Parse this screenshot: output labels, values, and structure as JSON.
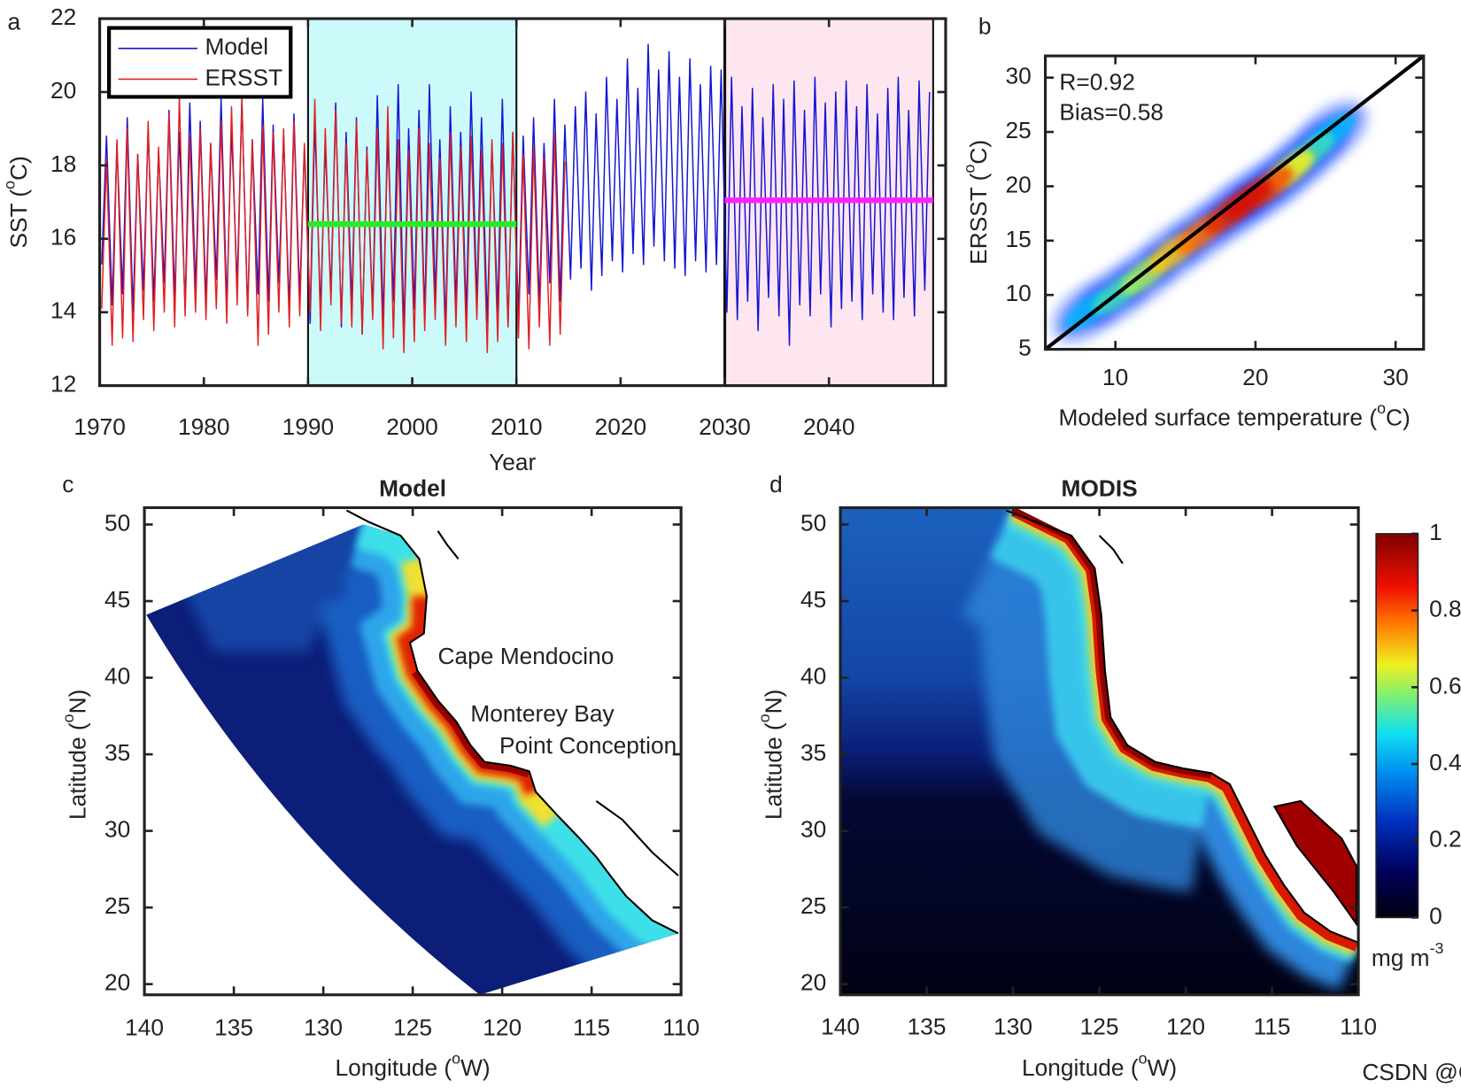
{
  "chart_data": [
    {
      "type": "line",
      "panel_label": "a",
      "xlabel": "Year",
      "ylabel": [
        "SST (",
        "o",
        "C)"
      ],
      "xlim": [
        1970,
        2051.2
      ],
      "ylim": [
        12,
        22
      ],
      "xticks": [
        1970,
        1980,
        1990,
        2000,
        2010,
        2020,
        2030,
        2040
      ],
      "yticks": [
        12,
        14,
        16,
        18,
        20,
        22
      ],
      "legend": "upper left",
      "spans": [
        {
          "x": [
            1990,
            2010
          ],
          "color": "#ccfafa"
        },
        {
          "x": [
            2030,
            2050
          ],
          "color": "#fde6f0"
        }
      ],
      "mean_lines": [
        {
          "x": [
            1990,
            2010
          ],
          "value": 16.4,
          "color": "#22ee22"
        },
        {
          "x": [
            2030,
            2050
          ],
          "value": 17.05,
          "color": "#ff22ff"
        }
      ],
      "x": [
        1970.2,
        1970.65,
        1971.2,
        1971.65,
        1972.2,
        1972.65,
        1973.2,
        1973.65,
        1974.2,
        1974.65,
        1975.2,
        1975.65,
        1976.2,
        1976.65,
        1977.2,
        1977.65,
        1978.2,
        1978.65,
        1979.2,
        1979.65,
        1980.2,
        1980.65,
        1981.2,
        1981.65,
        1982.2,
        1982.65,
        1983.2,
        1983.65,
        1984.2,
        1984.65,
        1985.2,
        1985.65,
        1986.2,
        1986.65,
        1987.2,
        1987.65,
        1988.2,
        1988.65,
        1989.2,
        1989.65,
        1990.2,
        1990.65,
        1991.2,
        1991.65,
        1992.2,
        1992.65,
        1993.2,
        1993.65,
        1994.2,
        1994.65,
        1995.2,
        1995.65,
        1996.2,
        1996.65,
        1997.2,
        1997.65,
        1998.2,
        1998.65,
        1999.2,
        1999.65,
        2000.2,
        2000.65,
        2001.2,
        2001.65,
        2002.2,
        2002.65,
        2003.2,
        2003.65,
        2004.2,
        2004.65,
        2005.2,
        2005.65,
        2006.2,
        2006.65,
        2007.2,
        2007.65,
        2008.2,
        2008.65,
        2009.2,
        2009.65,
        2010.2,
        2010.65,
        2011.2,
        2011.65,
        2012.2,
        2012.65,
        2013.2,
        2013.65,
        2014.2,
        2014.65,
        2015.2,
        2015.65,
        2016.2,
        2016.65,
        2017.2,
        2017.65,
        2018.2,
        2018.65,
        2019.2,
        2019.65,
        2020.2,
        2020.65,
        2021.2,
        2021.65,
        2022.2,
        2022.65,
        2023.2,
        2023.65,
        2024.2,
        2024.65,
        2025.2,
        2025.65,
        2026.2,
        2026.65,
        2027.2,
        2027.65,
        2028.2,
        2028.65,
        2029.2,
        2029.65,
        2030.2,
        2030.65,
        2031.2,
        2031.65,
        2032.2,
        2032.65,
        2033.2,
        2033.65,
        2034.2,
        2034.65,
        2035.2,
        2035.65,
        2036.2,
        2036.65,
        2037.2,
        2037.65,
        2038.2,
        2038.65,
        2039.2,
        2039.65,
        2040.2,
        2040.65,
        2041.2,
        2041.65,
        2042.2,
        2042.65,
        2043.2,
        2043.65,
        2044.2,
        2044.65,
        2045.2,
        2045.65,
        2046.2,
        2046.65,
        2047.2,
        2047.65,
        2048.2,
        2048.65,
        2049.2,
        2049.65
      ],
      "series": [
        {
          "name": "Model",
          "color": "#1414d2",
          "values": [
            15.3,
            18.8,
            14.2,
            18.6,
            14.5,
            19.3,
            14.0,
            18.3,
            14.6,
            19.0,
            14.3,
            18.4,
            14.8,
            19.5,
            14.4,
            18.9,
            14.1,
            19.7,
            14.6,
            19.2,
            14.3,
            18.6,
            14.9,
            19.8,
            14.2,
            19.0,
            14.7,
            19.8,
            14.0,
            18.7,
            14.5,
            19.8,
            14.3,
            19.1,
            14.8,
            18.8,
            14.1,
            19.4,
            14.4,
            18.5,
            13.7,
            19.2,
            14.0,
            18.6,
            14.5,
            19.7,
            13.6,
            18.9,
            14.2,
            19.3,
            13.4,
            18.5,
            14.0,
            19.9,
            13.8,
            18.8,
            14.3,
            20.2,
            13.5,
            19.0,
            14.1,
            19.5,
            13.9,
            20.2,
            14.4,
            18.7,
            13.6,
            19.6,
            14.2,
            18.9,
            13.9,
            20.0,
            14.3,
            19.3,
            13.7,
            18.6,
            14.0,
            19.8,
            13.6,
            18.9,
            13.9,
            18.8,
            14.5,
            19.3,
            14.2,
            18.6,
            14.8,
            19.8,
            14.3,
            19.1,
            14.9,
            19.6,
            15.2,
            20.0,
            14.6,
            19.4,
            15.0,
            20.4,
            15.4,
            19.8,
            15.1,
            20.9,
            15.6,
            20.1,
            15.3,
            21.3,
            15.8,
            20.6,
            15.4,
            21.1,
            15.2,
            20.4,
            15.0,
            20.9,
            15.4,
            20.2,
            15.1,
            20.7,
            15.3,
            20.6,
            14.0,
            20.4,
            13.8,
            19.6,
            14.3,
            20.1,
            13.5,
            19.3,
            14.4,
            20.2,
            13.9,
            19.8,
            13.1,
            20.3,
            14.2,
            19.5,
            13.9,
            20.4,
            14.5,
            19.7,
            13.6,
            20.0,
            14.1,
            20.3,
            14.3,
            19.6,
            13.8,
            20.2,
            14.5,
            19.4,
            14.0,
            20.1,
            13.8,
            20.4,
            14.4,
            19.5,
            13.9,
            20.3,
            14.6,
            20.0
          ]
        },
        {
          "name": "ERSST",
          "color": "#e02020",
          "values": [
            14.1,
            18.2,
            13.1,
            18.7,
            13.3,
            19.0,
            13.2,
            18.3,
            13.8,
            19.2,
            13.5,
            18.5,
            14.0,
            19.4,
            13.6,
            19.9,
            13.9,
            18.8,
            14.0,
            19.0,
            13.8,
            18.6,
            14.1,
            19.2,
            13.7,
            19.6,
            14.2,
            19.8,
            13.9,
            18.7,
            13.1,
            19.1,
            13.4,
            18.9,
            14.0,
            19.0,
            13.6,
            19.2,
            13.9,
            18.6,
            14.0,
            19.8,
            13.5,
            19.0,
            14.2,
            19.5,
            13.7,
            18.6,
            13.6,
            19.2,
            13.4,
            18.4,
            13.8,
            19.0,
            13.0,
            19.6,
            13.3,
            18.7,
            12.9,
            18.4,
            13.2,
            19.0,
            13.5,
            18.6,
            13.8,
            18.2,
            13.1,
            18.9,
            13.6,
            18.5,
            13.2,
            18.8,
            13.8,
            18.4,
            12.9,
            18.7,
            13.2,
            18.6,
            13.6,
            18.9,
            13.3,
            18.3,
            13.0,
            18.5,
            13.6,
            18.2,
            13.1,
            18.9,
            13.4,
            18.1,
            null,
            null,
            null,
            null,
            null,
            null,
            null,
            null,
            null,
            null,
            null,
            null,
            null,
            null,
            null,
            null,
            null,
            null,
            null,
            null,
            null,
            null,
            null,
            null,
            null,
            null,
            null,
            null,
            null,
            null,
            null,
            null,
            null,
            null,
            null,
            null,
            null,
            null,
            null,
            null,
            null,
            null,
            null,
            null,
            null,
            null,
            null,
            null,
            null,
            null,
            null,
            null,
            null,
            null,
            null,
            null,
            null,
            null,
            null,
            null,
            null,
            null,
            null,
            null,
            null,
            null,
            null,
            null,
            null,
            null
          ]
        }
      ]
    },
    {
      "type": "density",
      "panel_label": "b",
      "xlabel": [
        "Modeled surface temperature (",
        "o",
        "C)"
      ],
      "ylabel": [
        "ERSST (",
        "o",
        "C)"
      ],
      "xlim": [
        5,
        32
      ],
      "ylim": [
        5,
        32
      ],
      "xticks": [
        10,
        20,
        30
      ],
      "yticks": [
        5,
        10,
        15,
        20,
        25,
        30
      ],
      "annotations": [
        "R=0.92",
        "Bias=0.58"
      ],
      "one_to_one_line": true,
      "x": [
        8,
        10,
        12,
        14,
        16,
        18,
        19.5,
        21,
        22.5,
        24,
        25.5
      ],
      "values": [
        8.5,
        10,
        11.8,
        13.8,
        15.6,
        17.4,
        18.8,
        20,
        21.5,
        23.2,
        25
      ],
      "weights": [
        0.3,
        0.45,
        0.6,
        0.75,
        0.85,
        0.95,
        1,
        0.9,
        0.7,
        0.45,
        0.3
      ]
    },
    {
      "type": "map",
      "panel_label": "c",
      "title": "Model",
      "xlabel": [
        "Longitude (",
        "o",
        "W)"
      ],
      "ylabel": [
        "Latitude (",
        "o",
        "N)"
      ],
      "xlim": [
        140,
        110
      ],
      "ylim": [
        19.3,
        51.1
      ],
      "xticks": [
        140,
        135,
        130,
        125,
        120,
        115,
        110
      ],
      "yticks": [
        20,
        25,
        30,
        35,
        40,
        45,
        50
      ],
      "annotations": [
        "Cape Mendocino",
        "Monterey Bay",
        "Point Conception"
      ]
    },
    {
      "type": "map",
      "panel_label": "d",
      "title": "MODIS",
      "xlabel": [
        "Longitude (",
        "o",
        "W)"
      ],
      "ylabel": [
        "Latitude (",
        "o",
        "N)"
      ],
      "xlim": [
        140,
        110
      ],
      "ylim": [
        19.3,
        51.1
      ],
      "xticks": [
        140,
        135,
        130,
        125,
        120,
        115,
        110
      ],
      "yticks": [
        20,
        25,
        30,
        35,
        40,
        45,
        50
      ],
      "colorbar": {
        "lim": [
          0,
          1
        ],
        "ticks": [
          0,
          0.2,
          0.4,
          0.6,
          0.8,
          1
        ],
        "label": [
          "mg m",
          "-3"
        ]
      }
    }
  ],
  "watermark": "CSDN @CS数模"
}
